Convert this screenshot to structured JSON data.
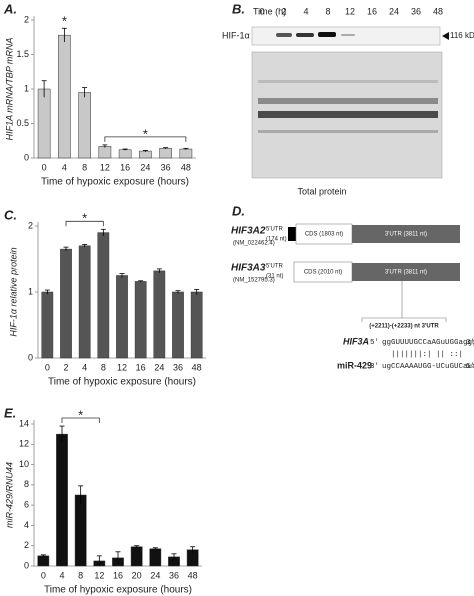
{
  "chart_data": [
    {
      "type": "bar",
      "panel": "A.",
      "ylabel": "HIF1A mRNA/TBP mRNA",
      "xlabel": "Time of hypoxic exposure (hours)",
      "categories": [
        "0",
        "4",
        "8",
        "12",
        "16",
        "24",
        "36",
        "48"
      ],
      "values": [
        1.0,
        1.78,
        0.95,
        0.17,
        0.12,
        0.1,
        0.14,
        0.13
      ],
      "errors": [
        0.12,
        0.1,
        0.07,
        0.02,
        0.01,
        0.01,
        0.01,
        0.01
      ],
      "color": "#c8c8c8",
      "ylim": [
        0,
        2
      ],
      "yticks": [
        0,
        0.5,
        1,
        1.5,
        2
      ],
      "annotations": [
        {
          "text": "*",
          "from": "4"
        },
        {
          "text": "*",
          "from": "12",
          "to": "48"
        }
      ]
    },
    {
      "type": "bar",
      "panel": "C.",
      "ylabel": "HIF-1α relative protein",
      "xlabel": "Time of hypoxic exposure (hours)",
      "categories": [
        "0",
        "2",
        "4",
        "8",
        "12",
        "16",
        "24",
        "36",
        "48"
      ],
      "values": [
        1.0,
        1.65,
        1.7,
        1.9,
        1.25,
        1.16,
        1.32,
        1.0,
        1.0
      ],
      "errors": [
        0.03,
        0.03,
        0.02,
        0.05,
        0.03,
        0.01,
        0.03,
        0.02,
        0.04
      ],
      "color": "#555555",
      "ylim": [
        0,
        2
      ],
      "yticks": [
        0,
        1,
        2
      ],
      "annotations": [
        {
          "text": "*",
          "from": "2",
          "to": "8"
        }
      ]
    },
    {
      "type": "bar",
      "panel": "E.",
      "ylabel": "miR-429/RNU44",
      "xlabel": "Time of hypoxic exposure (hours)",
      "categories": [
        "0",
        "4",
        "8",
        "12",
        "16",
        "20",
        "24",
        "36",
        "48"
      ],
      "values": [
        1.0,
        13.0,
        7.0,
        0.5,
        0.8,
        1.9,
        1.7,
        0.9,
        1.6
      ],
      "errors": [
        0.1,
        0.8,
        0.9,
        0.5,
        0.6,
        0.1,
        0.1,
        0.3,
        0.3
      ],
      "color": "#111111",
      "ylim": [
        0,
        14
      ],
      "yticks": [
        0,
        2,
        4,
        6,
        8,
        10,
        12,
        14
      ],
      "annotations": [
        {
          "text": "*",
          "from": "4",
          "to": "12"
        }
      ]
    }
  ],
  "blot": {
    "panel": "B.",
    "time_label": "Time (h)",
    "lanes": [
      "0",
      "2",
      "4",
      "8",
      "12",
      "16",
      "24",
      "36",
      "48"
    ],
    "band_label": "HIF-1α",
    "size_label": "116 kDa",
    "caption": "Total protein"
  },
  "diagram": {
    "panel": "D.",
    "transcripts": [
      {
        "name": "HIF3A2",
        "accession": "(NM_022462.4)",
        "utr5": "5'UTR",
        "utr5_len": "(174 nt)",
        "cds": "CDS (1803 nt)",
        "utr3": "3'UTR (3811 nt)"
      },
      {
        "name": "HIF3A3",
        "accession": "(NM_152795.3)",
        "utr5": "5'UTR",
        "utr5_len": "(31 nt)",
        "cds": "CDS (2010 nt)",
        "utr3": "3'UTR (3811 nt)"
      }
    ],
    "site": "(+2211)-(+2233) nt 3'UTR",
    "target_name": "HIF3A",
    "target_5": "5'",
    "target_seq": "ggGUUUUGCCaAGuUGGagggg",
    "target_3": "3'",
    "pairing": "|||||||:| || ::|",
    "mirna_name": "miR-429",
    "mirna_3": "3'",
    "mirna_seq": "ugCCAAAAUGG-UCuGUCauaau",
    "mirna_5": "5'"
  }
}
